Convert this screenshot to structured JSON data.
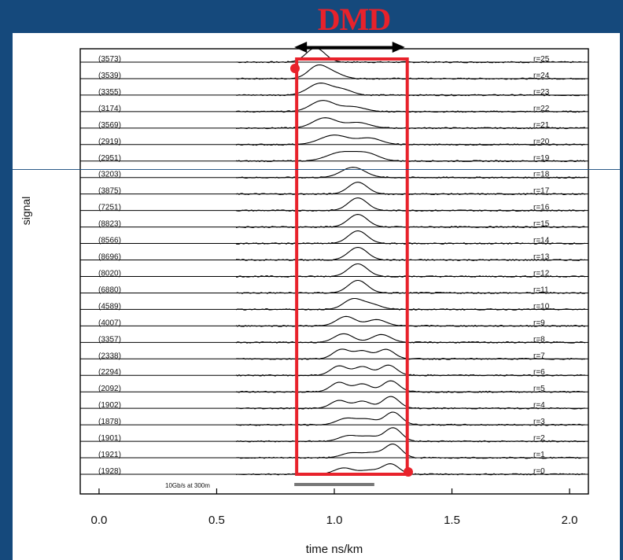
{
  "chart_data": {
    "type": "line",
    "title": "DMD",
    "xlabel": "time ns/km",
    "ylabel": "signal",
    "xlim": [
      -0.08,
      2.08
    ],
    "xticks": [
      0.0,
      0.5,
      1.0,
      1.5,
      2.0
    ],
    "xtick_labels": [
      "0.0",
      "0.5",
      "1.0",
      "1.5",
      "2.0"
    ],
    "grid": false,
    "traces": [
      {
        "offset_label": "r=25",
        "count_label": "(3573)",
        "peaks": [
          {
            "x": 0.92,
            "h": 18,
            "w": 0.04
          }
        ]
      },
      {
        "offset_label": "r=24",
        "count_label": "(3539)",
        "peaks": [
          {
            "x": 0.93,
            "h": 16,
            "w": 0.04
          },
          {
            "x": 1.0,
            "h": 6,
            "w": 0.04
          }
        ]
      },
      {
        "offset_label": "r=23",
        "count_label": "(3355)",
        "peaks": [
          {
            "x": 0.94,
            "h": 15,
            "w": 0.05
          },
          {
            "x": 1.04,
            "h": 6,
            "w": 0.04
          }
        ]
      },
      {
        "offset_label": "r=22",
        "count_label": "(3174)",
        "peaks": [
          {
            "x": 0.95,
            "h": 14,
            "w": 0.05
          },
          {
            "x": 1.08,
            "h": 6,
            "w": 0.05
          }
        ]
      },
      {
        "offset_label": "r=21",
        "count_label": "(3569)",
        "peaks": [
          {
            "x": 0.96,
            "h": 13,
            "w": 0.05
          },
          {
            "x": 1.1,
            "h": 7,
            "w": 0.05
          }
        ]
      },
      {
        "offset_label": "r=20",
        "count_label": "(2919)",
        "peaks": [
          {
            "x": 1.0,
            "h": 12,
            "w": 0.06
          },
          {
            "x": 1.15,
            "h": 8,
            "w": 0.05
          }
        ]
      },
      {
        "offset_label": "r=19",
        "count_label": "(2951)",
        "peaks": [
          {
            "x": 1.03,
            "h": 11,
            "w": 0.06
          },
          {
            "x": 1.14,
            "h": 9,
            "w": 0.05
          }
        ]
      },
      {
        "offset_label": "r=18",
        "count_label": "(3203)",
        "peaks": [
          {
            "x": 1.08,
            "h": 13,
            "w": 0.05
          }
        ]
      },
      {
        "offset_label": "r=17",
        "count_label": "(3875)",
        "peaks": [
          {
            "x": 1.1,
            "h": 15,
            "w": 0.04
          }
        ]
      },
      {
        "offset_label": "r=16",
        "count_label": "(7251)",
        "peaks": [
          {
            "x": 1.1,
            "h": 16,
            "w": 0.04
          }
        ]
      },
      {
        "offset_label": "r=15",
        "count_label": "(8823)",
        "peaks": [
          {
            "x": 1.1,
            "h": 16,
            "w": 0.04
          }
        ]
      },
      {
        "offset_label": "r=14",
        "count_label": "(8566)",
        "peaks": [
          {
            "x": 1.1,
            "h": 16,
            "w": 0.04
          }
        ]
      },
      {
        "offset_label": "r=13",
        "count_label": "(8696)",
        "peaks": [
          {
            "x": 1.1,
            "h": 16,
            "w": 0.04
          }
        ]
      },
      {
        "offset_label": "r=12",
        "count_label": "(8020)",
        "peaks": [
          {
            "x": 1.1,
            "h": 16,
            "w": 0.04
          }
        ]
      },
      {
        "offset_label": "r=11",
        "count_label": "(6880)",
        "peaks": [
          {
            "x": 1.1,
            "h": 16,
            "w": 0.04
          }
        ]
      },
      {
        "offset_label": "r=10",
        "count_label": "(4589)",
        "peaks": [
          {
            "x": 1.08,
            "h": 13,
            "w": 0.04
          },
          {
            "x": 1.16,
            "h": 6,
            "w": 0.04
          }
        ]
      },
      {
        "offset_label": "r=9",
        "count_label": "(4007)",
        "peaks": [
          {
            "x": 1.05,
            "h": 12,
            "w": 0.04
          },
          {
            "x": 1.18,
            "h": 8,
            "w": 0.04
          }
        ]
      },
      {
        "offset_label": "r=8",
        "count_label": "(3357)",
        "peaks": [
          {
            "x": 1.04,
            "h": 11,
            "w": 0.04
          },
          {
            "x": 1.2,
            "h": 10,
            "w": 0.04
          }
        ]
      },
      {
        "offset_label": "r=7",
        "count_label": "(2338)",
        "peaks": [
          {
            "x": 1.03,
            "h": 12,
            "w": 0.035
          },
          {
            "x": 1.12,
            "h": 10,
            "w": 0.035
          },
          {
            "x": 1.22,
            "h": 12,
            "w": 0.035
          }
        ]
      },
      {
        "offset_label": "r=6",
        "count_label": "(2294)",
        "peaks": [
          {
            "x": 1.02,
            "h": 12,
            "w": 0.035
          },
          {
            "x": 1.12,
            "h": 11,
            "w": 0.035
          },
          {
            "x": 1.23,
            "h": 13,
            "w": 0.035
          }
        ]
      },
      {
        "offset_label": "r=5",
        "count_label": "(2092)",
        "peaks": [
          {
            "x": 1.02,
            "h": 12,
            "w": 0.035
          },
          {
            "x": 1.12,
            "h": 10,
            "w": 0.035
          },
          {
            "x": 1.24,
            "h": 14,
            "w": 0.035
          }
        ]
      },
      {
        "offset_label": "r=4",
        "count_label": "(1902)",
        "peaks": [
          {
            "x": 1.02,
            "h": 10,
            "w": 0.035
          },
          {
            "x": 1.12,
            "h": 9,
            "w": 0.035
          },
          {
            "x": 1.24,
            "h": 15,
            "w": 0.035
          }
        ]
      },
      {
        "offset_label": "r=3",
        "count_label": "(1878)",
        "peaks": [
          {
            "x": 1.05,
            "h": 8,
            "w": 0.04
          },
          {
            "x": 1.14,
            "h": 7,
            "w": 0.04
          },
          {
            "x": 1.25,
            "h": 16,
            "w": 0.035
          }
        ]
      },
      {
        "offset_label": "r=2",
        "count_label": "(1901)",
        "peaks": [
          {
            "x": 1.06,
            "h": 7,
            "w": 0.04
          },
          {
            "x": 1.15,
            "h": 6,
            "w": 0.04
          },
          {
            "x": 1.25,
            "h": 17,
            "w": 0.035
          }
        ]
      },
      {
        "offset_label": "r=1",
        "count_label": "(1921)",
        "peaks": [
          {
            "x": 1.07,
            "h": 6,
            "w": 0.04
          },
          {
            "x": 1.16,
            "h": 6,
            "w": 0.04
          },
          {
            "x": 1.25,
            "h": 17,
            "w": 0.035
          }
        ]
      },
      {
        "offset_label": "r=0",
        "count_label": "(1928)",
        "peaks": [
          {
            "x": 1.04,
            "h": 8,
            "w": 0.04
          },
          {
            "x": 1.15,
            "h": 5,
            "w": 0.04
          },
          {
            "x": 1.24,
            "h": 13,
            "w": 0.035
          }
        ]
      }
    ],
    "dmd_window": {
      "x_start": 0.84,
      "x_end": 1.31
    },
    "dmd_arrow": {
      "x_start": 0.83,
      "x_end": 1.3
    },
    "scale_bar": {
      "label": "10Gb/s at 300m",
      "x_start": 0.83,
      "x_end": 1.17
    },
    "colors": {
      "traces": "#000000",
      "dmd_box": "#e8222b",
      "scale_bar": "#777777",
      "background": "#15497c"
    }
  }
}
